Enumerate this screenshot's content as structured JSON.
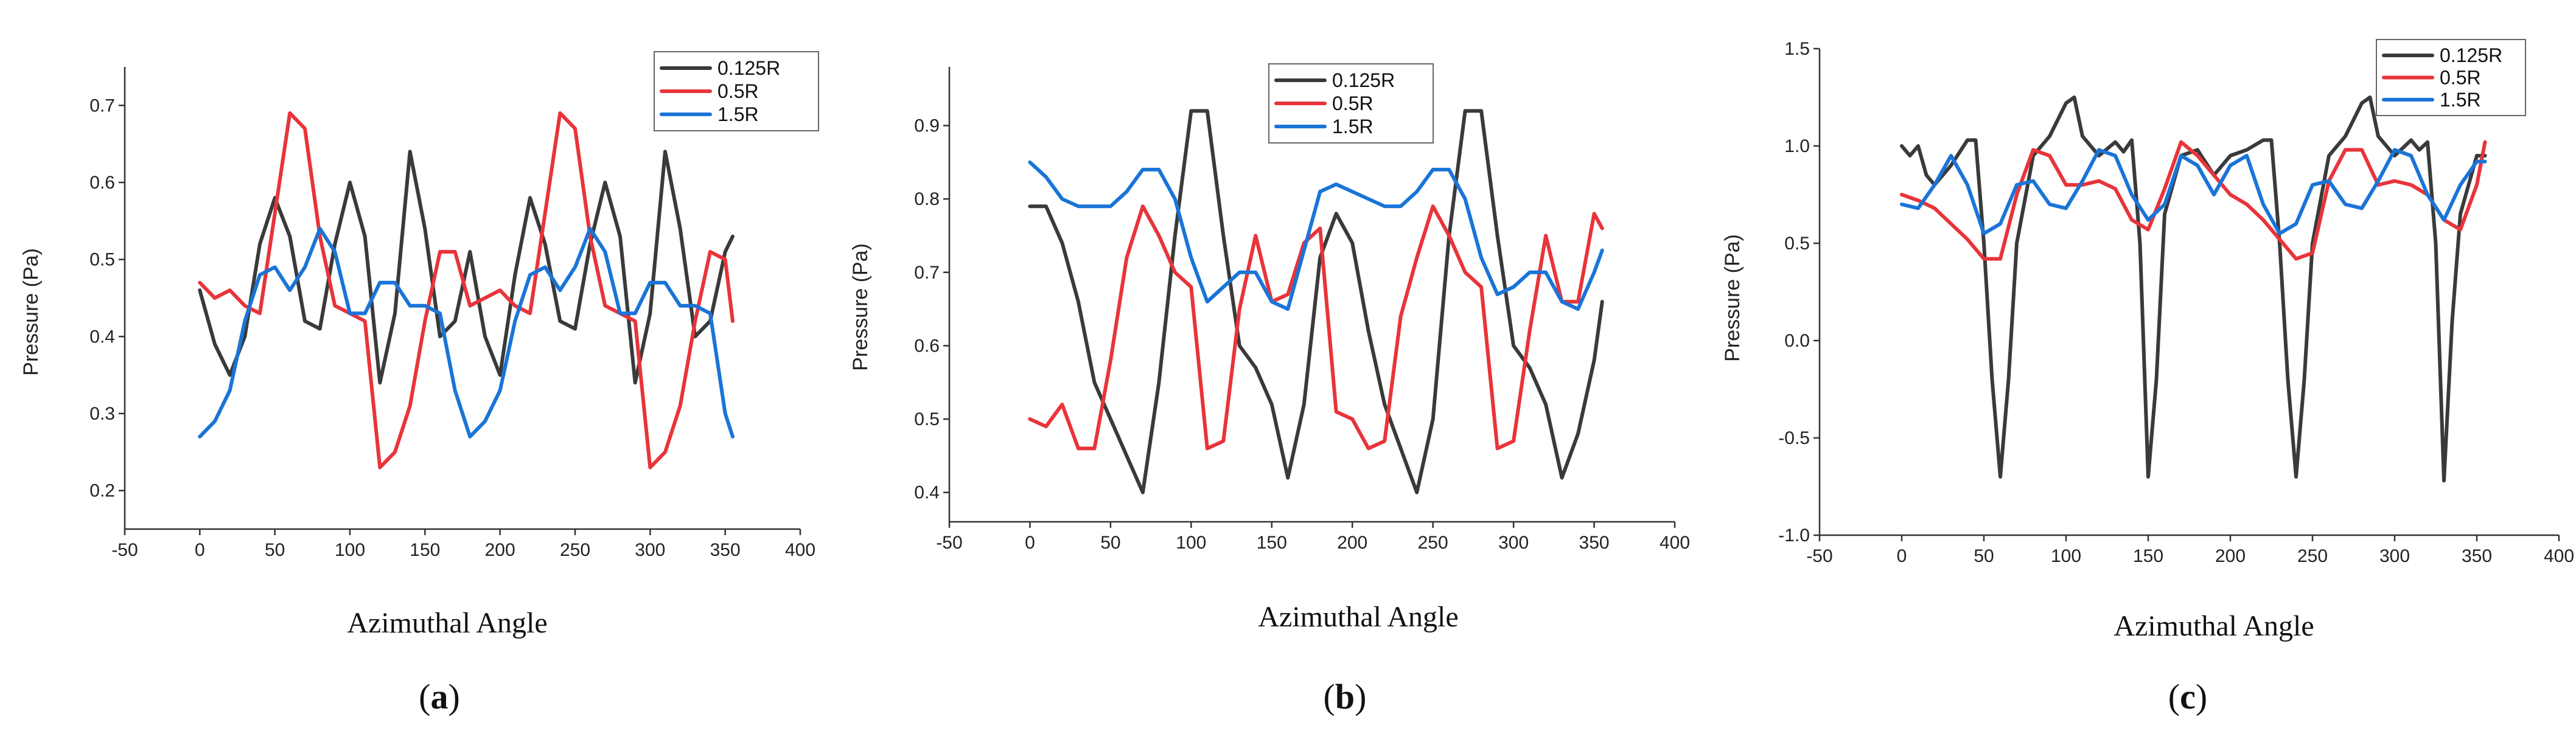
{
  "chart_data": [
    {
      "type": "line",
      "panel_label": "a",
      "xlabel": "Azimuthal Angle",
      "ylabel": "Pressure (Pa)",
      "xlim": [
        -50,
        400
      ],
      "ylim": [
        0.15,
        0.75
      ],
      "xticks": [
        -50,
        0,
        50,
        100,
        150,
        200,
        250,
        300,
        350,
        400
      ],
      "yticks": [
        0.2,
        0.3,
        0.4,
        0.5,
        0.6,
        0.7
      ],
      "legend_position": "top-right",
      "series": [
        {
          "name": "0.125R",
          "color": "#3a3a3a",
          "x": [
            0,
            10,
            20,
            30,
            40,
            50,
            60,
            70,
            80,
            90,
            100,
            110,
            120,
            130,
            140,
            150,
            160,
            170,
            180,
            190,
            200,
            210,
            220,
            230,
            240,
            250,
            260,
            270,
            280,
            290,
            300,
            310,
            320,
            330,
            340,
            350,
            355
          ],
          "y": [
            0.46,
            0.39,
            0.35,
            0.4,
            0.52,
            0.58,
            0.53,
            0.42,
            0.41,
            0.52,
            0.6,
            0.53,
            0.34,
            0.43,
            0.64,
            0.54,
            0.4,
            0.42,
            0.51,
            0.4,
            0.35,
            0.48,
            0.58,
            0.52,
            0.42,
            0.41,
            0.52,
            0.6,
            0.53,
            0.34,
            0.43,
            0.64,
            0.54,
            0.4,
            0.42,
            0.51,
            0.53
          ]
        },
        {
          "name": "0.5R",
          "color": "#e8343a",
          "x": [
            0,
            10,
            20,
            30,
            40,
            50,
            60,
            70,
            80,
            90,
            100,
            110,
            120,
            130,
            140,
            150,
            160,
            170,
            180,
            190,
            200,
            210,
            220,
            230,
            240,
            250,
            260,
            270,
            280,
            290,
            300,
            310,
            320,
            330,
            340,
            350,
            355
          ],
          "y": [
            0.47,
            0.45,
            0.46,
            0.44,
            0.43,
            0.56,
            0.69,
            0.67,
            0.53,
            0.44,
            0.43,
            0.42,
            0.23,
            0.25,
            0.31,
            0.42,
            0.51,
            0.51,
            0.44,
            0.45,
            0.46,
            0.44,
            0.43,
            0.56,
            0.69,
            0.67,
            0.53,
            0.44,
            0.43,
            0.42,
            0.23,
            0.25,
            0.31,
            0.42,
            0.51,
            0.5,
            0.42
          ]
        },
        {
          "name": "1.5R",
          "color": "#1a74d8",
          "x": [
            0,
            10,
            20,
            30,
            40,
            50,
            60,
            70,
            80,
            90,
            100,
            110,
            120,
            130,
            140,
            150,
            160,
            170,
            180,
            190,
            200,
            210,
            220,
            230,
            240,
            250,
            260,
            270,
            280,
            290,
            300,
            310,
            320,
            330,
            340,
            350,
            355
          ],
          "y": [
            0.27,
            0.29,
            0.33,
            0.42,
            0.48,
            0.49,
            0.46,
            0.49,
            0.54,
            0.51,
            0.43,
            0.43,
            0.47,
            0.47,
            0.44,
            0.44,
            0.43,
            0.33,
            0.27,
            0.29,
            0.33,
            0.42,
            0.48,
            0.49,
            0.46,
            0.49,
            0.54,
            0.51,
            0.43,
            0.43,
            0.47,
            0.47,
            0.44,
            0.44,
            0.43,
            0.3,
            0.27
          ]
        }
      ]
    },
    {
      "type": "line",
      "panel_label": "b",
      "xlabel": "Azimuthal Angle",
      "ylabel": "Pressure (Pa)",
      "xlim": [
        -50,
        400
      ],
      "ylim": [
        0.36,
        0.98
      ],
      "xticks": [
        -50,
        0,
        50,
        100,
        150,
        200,
        250,
        300,
        350,
        400
      ],
      "yticks": [
        0.4,
        0.5,
        0.6,
        0.7,
        0.8,
        0.9
      ],
      "legend_position": "top-right",
      "series": [
        {
          "name": "0.125R",
          "color": "#3a3a3a",
          "x": [
            0,
            10,
            20,
            30,
            40,
            50,
            60,
            70,
            80,
            90,
            100,
            110,
            120,
            130,
            140,
            150,
            160,
            170,
            180,
            190,
            200,
            210,
            220,
            230,
            240,
            250,
            260,
            270,
            280,
            290,
            300,
            310,
            320,
            330,
            340,
            350,
            355
          ],
          "y": [
            0.79,
            0.79,
            0.74,
            0.66,
            0.55,
            0.5,
            0.45,
            0.4,
            0.55,
            0.75,
            0.92,
            0.92,
            0.75,
            0.6,
            0.57,
            0.52,
            0.42,
            0.52,
            0.72,
            0.78,
            0.74,
            0.62,
            0.52,
            0.46,
            0.4,
            0.5,
            0.75,
            0.92,
            0.92,
            0.75,
            0.6,
            0.57,
            0.52,
            0.42,
            0.48,
            0.58,
            0.66
          ]
        },
        {
          "name": "0.5R",
          "color": "#e8343a",
          "x": [
            0,
            10,
            20,
            30,
            40,
            50,
            60,
            70,
            80,
            90,
            100,
            110,
            120,
            130,
            140,
            150,
            160,
            170,
            180,
            190,
            200,
            210,
            220,
            230,
            240,
            250,
            260,
            270,
            280,
            290,
            300,
            310,
            320,
            330,
            340,
            350,
            355
          ],
          "y": [
            0.5,
            0.49,
            0.52,
            0.46,
            0.46,
            0.58,
            0.72,
            0.79,
            0.75,
            0.7,
            0.68,
            0.46,
            0.47,
            0.65,
            0.75,
            0.66,
            0.67,
            0.74,
            0.76,
            0.51,
            0.5,
            0.46,
            0.47,
            0.64,
            0.72,
            0.79,
            0.75,
            0.7,
            0.68,
            0.46,
            0.47,
            0.62,
            0.75,
            0.66,
            0.66,
            0.78,
            0.76
          ]
        },
        {
          "name": "1.5R",
          "color": "#1a74d8",
          "x": [
            0,
            10,
            20,
            30,
            40,
            50,
            60,
            70,
            80,
            90,
            100,
            110,
            120,
            130,
            140,
            150,
            160,
            170,
            180,
            190,
            200,
            210,
            220,
            230,
            240,
            250,
            260,
            270,
            280,
            290,
            300,
            310,
            320,
            330,
            340,
            350,
            355
          ],
          "y": [
            0.85,
            0.83,
            0.8,
            0.79,
            0.79,
            0.79,
            0.81,
            0.84,
            0.84,
            0.8,
            0.72,
            0.66,
            0.68,
            0.7,
            0.7,
            0.66,
            0.65,
            0.73,
            0.81,
            0.82,
            0.81,
            0.8,
            0.79,
            0.79,
            0.81,
            0.84,
            0.84,
            0.8,
            0.72,
            0.67,
            0.68,
            0.7,
            0.7,
            0.66,
            0.65,
            0.7,
            0.73
          ]
        }
      ]
    },
    {
      "type": "line",
      "panel_label": "c",
      "xlabel": "Azimuthal Angle",
      "ylabel": "Pressure (Pa)",
      "xlim": [
        -50,
        400
      ],
      "ylim": [
        -1.0,
        1.5
      ],
      "xticks": [
        -50,
        0,
        50,
        100,
        150,
        200,
        250,
        300,
        350,
        400
      ],
      "yticks": [
        -1.0,
        -0.5,
        0.0,
        0.5,
        1.0,
        1.5
      ],
      "legend_position": "top-right",
      "series": [
        {
          "name": "0.125R",
          "color": "#3a3a3a",
          "x": [
            0,
            5,
            10,
            15,
            20,
            30,
            40,
            45,
            50,
            55,
            60,
            65,
            70,
            80,
            90,
            100,
            105,
            110,
            120,
            130,
            135,
            140,
            145,
            150,
            155,
            160,
            170,
            180,
            190,
            200,
            210,
            220,
            225,
            230,
            235,
            240,
            245,
            250,
            260,
            270,
            280,
            285,
            290,
            300,
            310,
            315,
            320,
            325,
            330,
            335,
            340,
            350,
            355
          ],
          "y": [
            1.0,
            0.95,
            1.0,
            0.85,
            0.8,
            0.9,
            1.03,
            1.03,
            0.5,
            -0.2,
            -0.7,
            -0.2,
            0.5,
            0.95,
            1.05,
            1.22,
            1.25,
            1.05,
            0.95,
            1.02,
            0.97,
            1.03,
            0.5,
            -0.7,
            -0.2,
            0.65,
            0.95,
            0.98,
            0.85,
            0.95,
            0.98,
            1.03,
            1.03,
            0.5,
            -0.2,
            -0.7,
            -0.2,
            0.5,
            0.95,
            1.05,
            1.22,
            1.25,
            1.05,
            0.95,
            1.03,
            0.98,
            1.02,
            0.5,
            -0.72,
            0.1,
            0.65,
            0.95,
            0.95
          ]
        },
        {
          "name": "0.5R",
          "color": "#e8343a",
          "x": [
            0,
            10,
            20,
            30,
            40,
            50,
            60,
            70,
            80,
            90,
            100,
            110,
            120,
            130,
            140,
            150,
            160,
            170,
            180,
            190,
            200,
            210,
            220,
            230,
            240,
            250,
            260,
            270,
            280,
            290,
            300,
            310,
            320,
            330,
            340,
            350,
            355
          ],
          "y": [
            0.75,
            0.72,
            0.68,
            0.6,
            0.52,
            0.42,
            0.42,
            0.75,
            0.98,
            0.95,
            0.8,
            0.8,
            0.82,
            0.78,
            0.62,
            0.57,
            0.78,
            1.02,
            0.95,
            0.85,
            0.75,
            0.7,
            0.62,
            0.52,
            0.42,
            0.45,
            0.82,
            0.98,
            0.98,
            0.8,
            0.82,
            0.8,
            0.75,
            0.62,
            0.57,
            0.8,
            1.02
          ]
        },
        {
          "name": "1.5R",
          "color": "#1a74d8",
          "x": [
            0,
            10,
            20,
            30,
            40,
            50,
            60,
            70,
            80,
            90,
            100,
            110,
            120,
            130,
            140,
            150,
            160,
            170,
            180,
            190,
            200,
            210,
            220,
            230,
            240,
            250,
            260,
            270,
            280,
            290,
            300,
            310,
            320,
            330,
            340,
            350,
            355
          ],
          "y": [
            0.7,
            0.68,
            0.8,
            0.95,
            0.8,
            0.55,
            0.6,
            0.8,
            0.82,
            0.7,
            0.68,
            0.82,
            0.98,
            0.95,
            0.75,
            0.62,
            0.7,
            0.95,
            0.9,
            0.75,
            0.9,
            0.95,
            0.7,
            0.55,
            0.6,
            0.8,
            0.82,
            0.7,
            0.68,
            0.82,
            0.98,
            0.95,
            0.75,
            0.62,
            0.8,
            0.92,
            0.92
          ]
        }
      ]
    }
  ]
}
